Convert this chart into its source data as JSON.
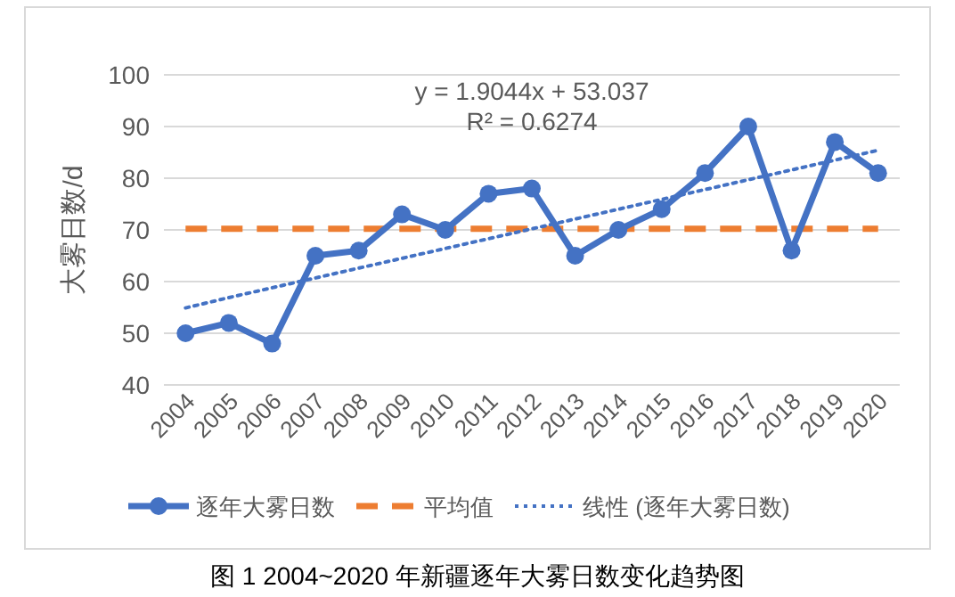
{
  "chart_data": {
    "type": "line",
    "title": "图 1 2004~2020 年新疆逐年大雾日数变化趋势图",
    "ylabel": "大雾日数/d",
    "categories": [
      "2004",
      "2005",
      "2006",
      "2007",
      "2008",
      "2009",
      "2010",
      "2011",
      "2012",
      "2013",
      "2014",
      "2015",
      "2016",
      "2017",
      "2018",
      "2019",
      "2020"
    ],
    "series": [
      {
        "name": "逐年大雾日数",
        "color": "#4472c4",
        "marker": "circle",
        "line_style": "solid",
        "values": [
          50,
          52,
          48,
          65,
          66,
          73,
          70,
          77,
          78,
          65,
          70,
          74,
          81,
          90,
          66,
          87,
          81
        ]
      },
      {
        "name": "线性 (逐年大雾日数)",
        "color": "#4472c4",
        "marker": "none",
        "line_style": "dotted",
        "values": [
          54.9,
          56.9,
          58.8,
          60.7,
          62.6,
          64.5,
          66.4,
          68.3,
          70.2,
          72.1,
          74.0,
          75.9,
          77.8,
          79.7,
          81.6,
          83.5,
          85.4
        ]
      }
    ],
    "ref_lines": [
      {
        "axis": "y",
        "value": 70.2,
        "label": "平均值",
        "color": "#ed7d31",
        "line_style": "dashed"
      }
    ],
    "annotations": [
      "y = 1.9044x + 53.037",
      "R² = 0.6274"
    ],
    "ylim": [
      40,
      100
    ],
    "yticks": [
      40,
      50,
      60,
      70,
      80,
      90,
      100
    ],
    "grid": "y",
    "legend": "bottom"
  }
}
